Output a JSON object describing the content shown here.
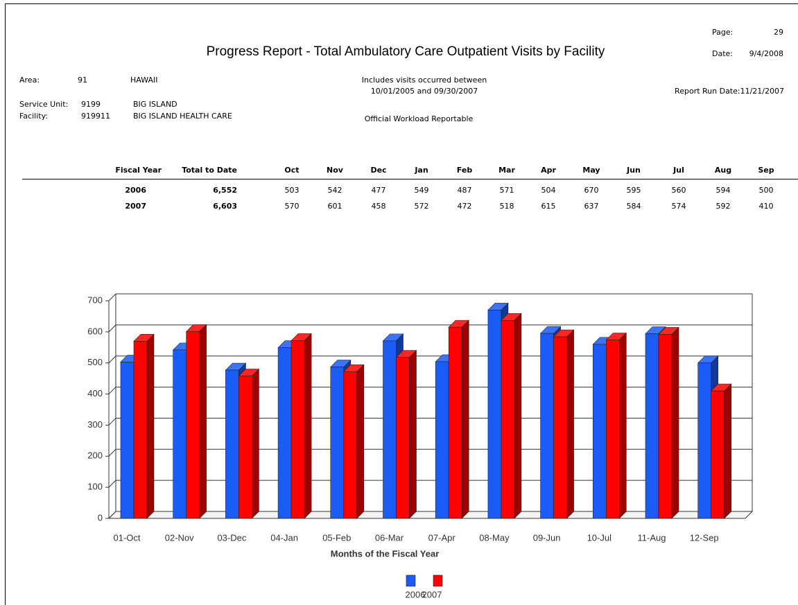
{
  "header": {
    "title": "Progress Report - Total Ambulatory Care Outpatient Visits by Facility",
    "page_label": "Page:",
    "page": "29",
    "date_label": "Date:",
    "date": "9/4/2008",
    "area_label": "Area:",
    "area_code": "91",
    "area_name": "HAWAII",
    "range_line1": "Includes visits occurred between",
    "range_line2": "10/01/2005  and  09/30/2007",
    "run_date": "Report Run Date:11/21/2007",
    "service_unit_label": "Service Unit:",
    "service_unit_code": "9199",
    "service_unit_name": "BIG ISLAND",
    "facility_label": "Facility:",
    "facility_code": "919911",
    "facility_name": "BIG ISLAND HEALTH CARE",
    "workload": "Official Workload Reportable"
  },
  "table": {
    "columns": [
      "Fiscal Year",
      "Total to Date",
      "Oct",
      "Nov",
      "Dec",
      "Jan",
      "Feb",
      "Mar",
      "Apr",
      "May",
      "Jun",
      "Jul",
      "Aug",
      "Sep"
    ],
    "totals": [
      "6,552",
      "6,603"
    ]
  },
  "chart_data": {
    "type": "bar",
    "x_label": "Months of the Fiscal Year",
    "categories": [
      "01-Oct",
      "02-Nov",
      "03-Dec",
      "04-Jan",
      "05-Feb",
      "06-Mar",
      "07-Apr",
      "08-May",
      "09-Jun",
      "10-Jul",
      "11-Aug",
      "12-Sep"
    ],
    "series": [
      {
        "name": "2006",
        "color": "#1a5cf5",
        "values": [
          503,
          542,
          477,
          549,
          487,
          571,
          504,
          670,
          595,
          560,
          594,
          500
        ]
      },
      {
        "name": "2007",
        "color": "#ff0000",
        "values": [
          570,
          601,
          458,
          572,
          472,
          518,
          615,
          637,
          584,
          574,
          592,
          410
        ]
      }
    ],
    "ylim": [
      0,
      700
    ],
    "yticks": [
      0,
      100,
      200,
      300,
      400,
      500,
      600,
      700
    ],
    "grid": true,
    "legend": "bottom"
  }
}
